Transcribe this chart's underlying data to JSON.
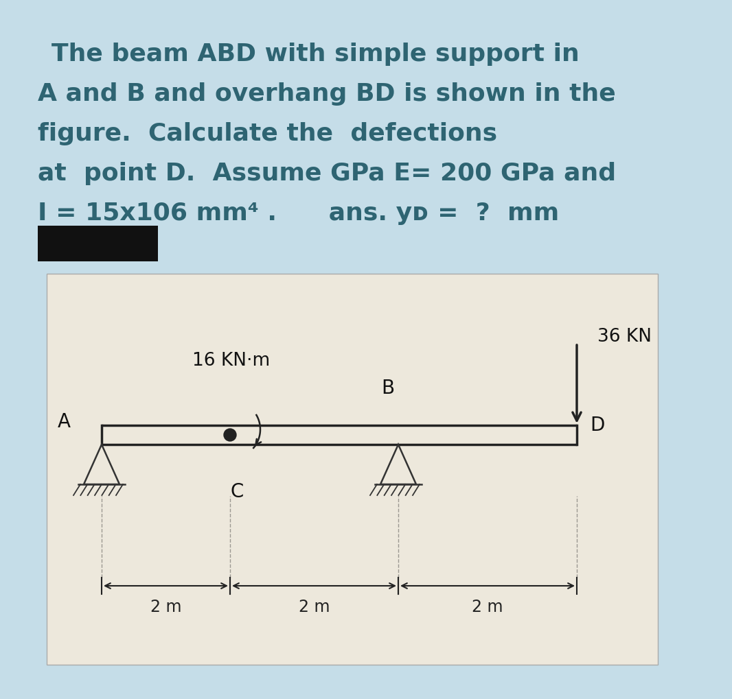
{
  "bg_color": "#c5dde8",
  "diagram_bg": "#ede8dc",
  "title_lines": [
    "The beam ABD with simple support in",
    "A and B and overhang BD is shown in the",
    "figure.  Calculate the  defections",
    "at  point D.  Assume GPa E= 200 GPa and",
    "I = 15x106 mm⁴ .      ans. yᴅ =  ?  mm"
  ],
  "title_fontsize": 26,
  "title_color": "#2e6472",
  "redacted_color": "#111111",
  "moment_label": "16 KN·m",
  "force_label": "36 KN",
  "dim_label": "2 m",
  "label_A": "A",
  "label_B": "B",
  "label_C": "C",
  "label_D": "D",
  "beam_color": "#222222",
  "support_color": "#333333",
  "text_color": "#111111"
}
